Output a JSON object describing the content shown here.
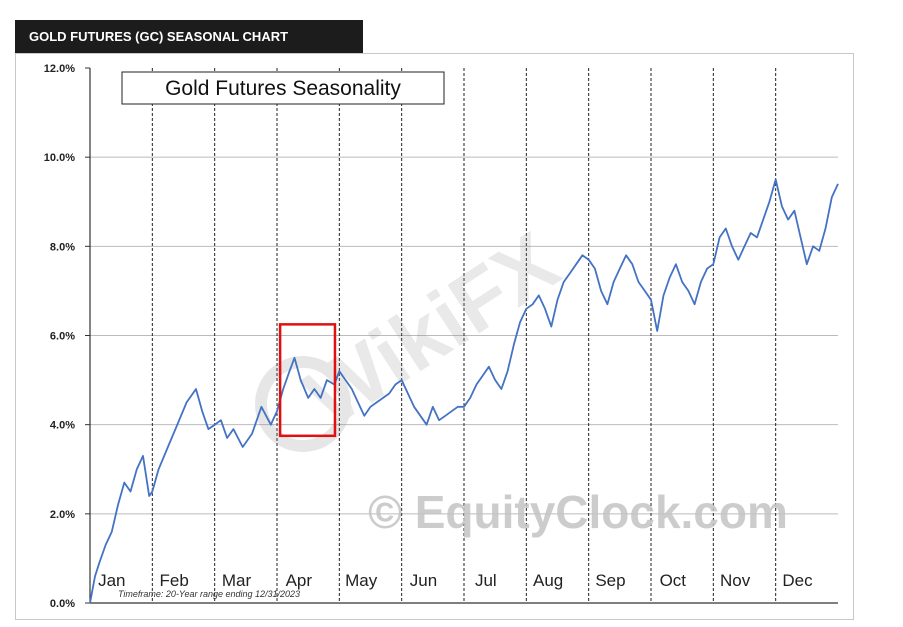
{
  "header": {
    "title": "GOLD FUTURES (GC) SEASONAL CHART"
  },
  "chart_data": {
    "type": "line",
    "title": "Gold Futures Seasonality",
    "footnote": "Timeframe: 20-Year range ending 12/31/2023",
    "xlabel": "",
    "ylabel": "",
    "ylim": [
      0,
      12
    ],
    "y_ticks": [
      "0.0%",
      "2.0%",
      "4.0%",
      "6.0%",
      "8.0%",
      "10.0%",
      "12.0%"
    ],
    "months": [
      "Jan",
      "Feb",
      "Mar",
      "Apr",
      "May",
      "Jun",
      "Jul",
      "Aug",
      "Sep",
      "Oct",
      "Nov",
      "Dec"
    ],
    "grid": true,
    "series": [
      {
        "color": "#4472c4",
        "points": [
          [
            0.0,
            0.0
          ],
          [
            0.08,
            0.6
          ],
          [
            0.15,
            0.9
          ],
          [
            0.25,
            1.3
          ],
          [
            0.35,
            1.6
          ],
          [
            0.45,
            2.2
          ],
          [
            0.55,
            2.7
          ],
          [
            0.65,
            2.5
          ],
          [
            0.75,
            3.0
          ],
          [
            0.85,
            3.3
          ],
          [
            0.95,
            2.4
          ],
          [
            1.0,
            2.5
          ],
          [
            1.1,
            3.0
          ],
          [
            1.25,
            3.5
          ],
          [
            1.4,
            4.0
          ],
          [
            1.55,
            4.5
          ],
          [
            1.7,
            4.8
          ],
          [
            1.8,
            4.3
          ],
          [
            1.9,
            3.9
          ],
          [
            2.0,
            4.0
          ],
          [
            2.1,
            4.1
          ],
          [
            2.2,
            3.7
          ],
          [
            2.3,
            3.9
          ],
          [
            2.45,
            3.5
          ],
          [
            2.6,
            3.8
          ],
          [
            2.75,
            4.4
          ],
          [
            2.9,
            4.0
          ],
          [
            3.0,
            4.3
          ],
          [
            3.1,
            4.8
          ],
          [
            3.2,
            5.2
          ],
          [
            3.28,
            5.5
          ],
          [
            3.38,
            5.0
          ],
          [
            3.5,
            4.6
          ],
          [
            3.6,
            4.8
          ],
          [
            3.7,
            4.6
          ],
          [
            3.8,
            5.0
          ],
          [
            3.92,
            4.9
          ],
          [
            4.0,
            5.2
          ],
          [
            4.1,
            5.0
          ],
          [
            4.2,
            4.8
          ],
          [
            4.3,
            4.5
          ],
          [
            4.4,
            4.2
          ],
          [
            4.5,
            4.4
          ],
          [
            4.6,
            4.5
          ],
          [
            4.7,
            4.6
          ],
          [
            4.8,
            4.7
          ],
          [
            4.9,
            4.9
          ],
          [
            5.0,
            5.0
          ],
          [
            5.1,
            4.7
          ],
          [
            5.2,
            4.4
          ],
          [
            5.3,
            4.2
          ],
          [
            5.4,
            4.0
          ],
          [
            5.5,
            4.4
          ],
          [
            5.6,
            4.1
          ],
          [
            5.7,
            4.2
          ],
          [
            5.8,
            4.3
          ],
          [
            5.9,
            4.4
          ],
          [
            6.0,
            4.4
          ],
          [
            6.1,
            4.6
          ],
          [
            6.2,
            4.9
          ],
          [
            6.3,
            5.1
          ],
          [
            6.4,
            5.3
          ],
          [
            6.5,
            5.0
          ],
          [
            6.6,
            4.8
          ],
          [
            6.7,
            5.2
          ],
          [
            6.8,
            5.8
          ],
          [
            6.9,
            6.3
          ],
          [
            7.0,
            6.6
          ],
          [
            7.1,
            6.7
          ],
          [
            7.2,
            6.9
          ],
          [
            7.3,
            6.6
          ],
          [
            7.4,
            6.2
          ],
          [
            7.5,
            6.8
          ],
          [
            7.6,
            7.2
          ],
          [
            7.7,
            7.4
          ],
          [
            7.8,
            7.6
          ],
          [
            7.9,
            7.8
          ],
          [
            8.0,
            7.7
          ],
          [
            8.1,
            7.5
          ],
          [
            8.2,
            7.0
          ],
          [
            8.3,
            6.7
          ],
          [
            8.4,
            7.2
          ],
          [
            8.5,
            7.5
          ],
          [
            8.6,
            7.8
          ],
          [
            8.7,
            7.6
          ],
          [
            8.8,
            7.2
          ],
          [
            8.9,
            7.0
          ],
          [
            9.0,
            6.8
          ],
          [
            9.1,
            6.1
          ],
          [
            9.2,
            6.9
          ],
          [
            9.3,
            7.3
          ],
          [
            9.4,
            7.6
          ],
          [
            9.5,
            7.2
          ],
          [
            9.6,
            7.0
          ],
          [
            9.7,
            6.7
          ],
          [
            9.8,
            7.2
          ],
          [
            9.9,
            7.5
          ],
          [
            10.0,
            7.6
          ],
          [
            10.1,
            8.2
          ],
          [
            10.2,
            8.4
          ],
          [
            10.3,
            8.0
          ],
          [
            10.4,
            7.7
          ],
          [
            10.5,
            8.0
          ],
          [
            10.6,
            8.3
          ],
          [
            10.7,
            8.2
          ],
          [
            10.8,
            8.6
          ],
          [
            10.9,
            9.0
          ],
          [
            11.0,
            9.5
          ],
          [
            11.1,
            8.9
          ],
          [
            11.2,
            8.6
          ],
          [
            11.3,
            8.8
          ],
          [
            11.4,
            8.2
          ],
          [
            11.5,
            7.6
          ],
          [
            11.6,
            8.0
          ],
          [
            11.7,
            7.9
          ],
          [
            11.8,
            8.4
          ],
          [
            11.9,
            9.1
          ],
          [
            12.0,
            9.4
          ]
        ]
      }
    ]
  },
  "watermark": {
    "brand": "WikiFX",
    "copyright": "© EquityClock.com"
  },
  "colors": {
    "line": "#4472c4",
    "highlight": "#e01010",
    "grid_line": "#bbbbbb",
    "header_bg": "#1c1c1c"
  }
}
